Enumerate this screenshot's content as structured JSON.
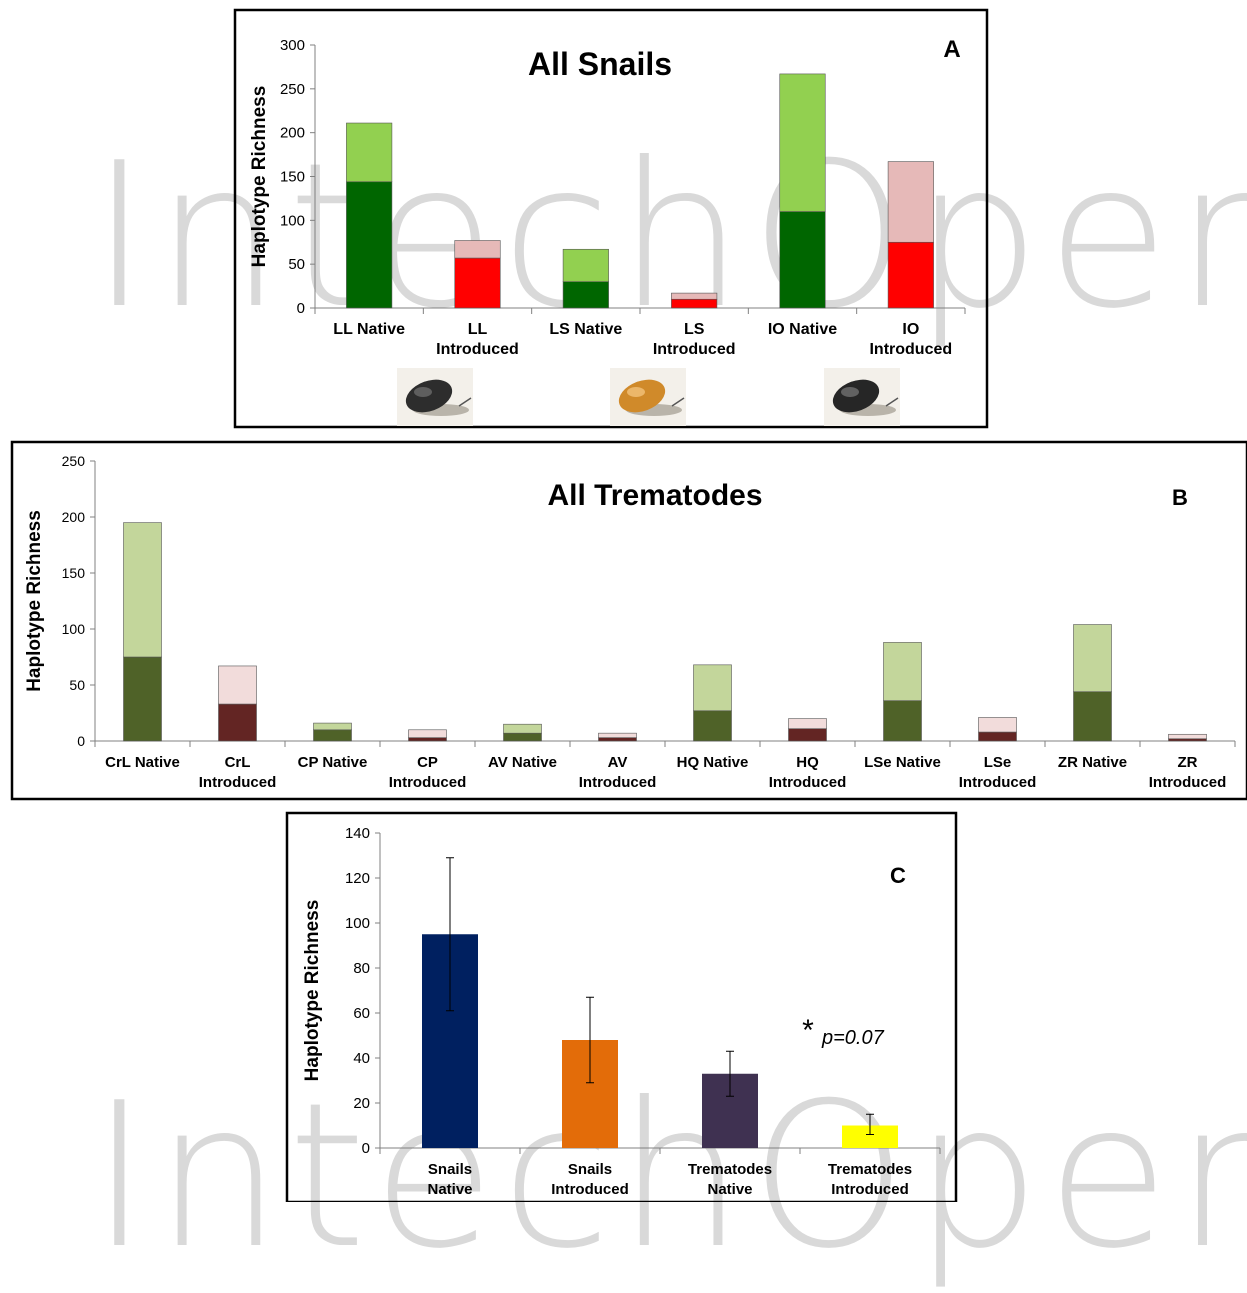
{
  "chart_data": [
    {
      "panel": "A",
      "type": "bar",
      "title": "All Snails",
      "ylabel": "Haplotype Richness",
      "ylim": [
        0,
        300
      ],
      "yticks": [
        0,
        50,
        100,
        150,
        200,
        250,
        300
      ],
      "stacked": true,
      "categories": [
        [
          "LL Native"
        ],
        [
          "LL",
          "Introduced"
        ],
        [
          "LS Native"
        ],
        [
          "LS",
          "Introduced"
        ],
        [
          "IO Native"
        ],
        [
          "IO",
          "Introduced"
        ]
      ],
      "series": [
        {
          "values": [
            144,
            57,
            30,
            10,
            110,
            75
          ],
          "colors": [
            "#006600",
            "#ff0000",
            "#006600",
            "#ff0000",
            "#006600",
            "#ff0000"
          ]
        },
        {
          "values": [
            67,
            20,
            37,
            7,
            157,
            92
          ],
          "colors": [
            "#92d050",
            "#e6b9b8",
            "#92d050",
            "#e6b9b8",
            "#92d050",
            "#e6b9b8"
          ]
        }
      ]
    },
    {
      "panel": "B",
      "type": "bar",
      "title": "All Trematodes",
      "ylabel": "Haplotype Richness",
      "ylim": [
        0,
        250
      ],
      "yticks": [
        0,
        50,
        100,
        150,
        200,
        250
      ],
      "stacked": true,
      "categories": [
        [
          "CrL Native"
        ],
        [
          "CrL",
          "Introduced"
        ],
        [
          "CP Native"
        ],
        [
          "CP",
          "Introduced"
        ],
        [
          "AV Native"
        ],
        [
          "AV",
          "Introduced"
        ],
        [
          "HQ Native"
        ],
        [
          "HQ",
          "Introduced"
        ],
        [
          "LSe Native"
        ],
        [
          "LSe",
          "Introduced"
        ],
        [
          "ZR Native"
        ],
        [
          "ZR",
          "Introduced"
        ]
      ],
      "series": [
        {
          "values": [
            75,
            33,
            10,
            3,
            7,
            3,
            27,
            11,
            36,
            8,
            44,
            2
          ],
          "colors": [
            "#4f6228",
            "#632523",
            "#4f6228",
            "#632523",
            "#4f6228",
            "#632523",
            "#4f6228",
            "#632523",
            "#4f6228",
            "#632523",
            "#4f6228",
            "#632523"
          ]
        },
        {
          "values": [
            120,
            34,
            6,
            7,
            8,
            4,
            41,
            9,
            52,
            13,
            60,
            4
          ],
          "colors": [
            "#c3d69b",
            "#f2dcdb",
            "#c3d69b",
            "#f2dcdb",
            "#c3d69b",
            "#f2dcdb",
            "#c3d69b",
            "#f2dcdb",
            "#c3d69b",
            "#f2dcdb",
            "#c3d69b",
            "#f2dcdb"
          ]
        }
      ]
    },
    {
      "panel": "C",
      "type": "bar",
      "ylabel": "Haplotype Richness",
      "ylim": [
        0,
        140
      ],
      "yticks": [
        0,
        20,
        40,
        60,
        80,
        100,
        120,
        140
      ],
      "categories": [
        [
          "Snails",
          "Native"
        ],
        [
          "Snails",
          "Introduced"
        ],
        [
          "Trematodes",
          "Native"
        ],
        [
          "Trematodes",
          "Introduced"
        ]
      ],
      "values": [
        95,
        48,
        33,
        10
      ],
      "error_low": [
        61,
        29,
        23,
        6
      ],
      "error_high": [
        129,
        67,
        43,
        15
      ],
      "colors": [
        "#002060",
        "#e36c09",
        "#3f3151",
        "#ffff00"
      ],
      "annotation": {
        "star": "*",
        "text": "p=0.07"
      }
    }
  ],
  "watermark": {
    "text_top": "IntechOpen",
    "text_bottom": "IntechOpen"
  }
}
